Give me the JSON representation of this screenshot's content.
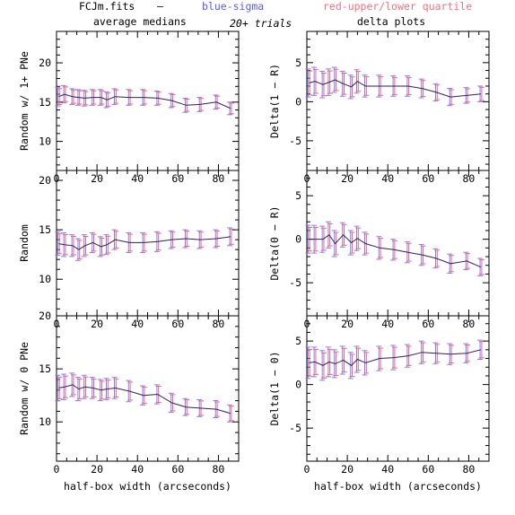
{
  "header": {
    "file": "FCJm.fits",
    "dash": "—",
    "blue_label": "blue-sigma",
    "red_label": "red-upper/lower quartile",
    "trials": "20+ trials"
  },
  "colors": {
    "line": "#3a1a5a",
    "blue": "#8080ee",
    "red": "#ee6080",
    "axis": "#000000"
  },
  "columns": {
    "left_title": "average medians",
    "right_title": "delta plots"
  },
  "x_axis": {
    "label": "half-box width (arcseconds)",
    "range": [
      0,
      90
    ],
    "ticks": [
      0,
      20,
      40,
      60,
      80
    ]
  },
  "chart_data": [
    {
      "type": "line",
      "position": "left-top",
      "ylabel": "Random w/ 1+ PNe",
      "ylim": [
        6.3,
        24
      ],
      "yticks": [
        10,
        15,
        20
      ],
      "x": [
        1,
        4,
        8,
        11,
        14,
        18,
        22,
        25,
        29,
        36,
        43,
        50,
        57,
        64,
        71,
        79,
        86
      ],
      "y": [
        15.7,
        16.0,
        15.7,
        15.6,
        15.5,
        15.6,
        15.6,
        15.3,
        15.7,
        15.6,
        15.6,
        15.5,
        15.2,
        14.6,
        14.7,
        15.0,
        14.2
      ],
      "err": [
        1.2,
        1.1,
        1.0,
        1.0,
        1.0,
        1.0,
        1.0,
        1.0,
        1.0,
        1.0,
        1.0,
        0.9,
        0.9,
        0.9,
        0.9,
        0.9,
        0.8
      ]
    },
    {
      "type": "line",
      "position": "right-top",
      "ylabel": "Delta(1 − R)",
      "ylim": [
        -8.8,
        9
      ],
      "yticks": [
        -5,
        0,
        5
      ],
      "x": [
        1,
        4,
        8,
        11,
        14,
        18,
        22,
        25,
        29,
        36,
        43,
        50,
        57,
        64,
        71,
        79,
        86
      ],
      "y": [
        2.4,
        2.6,
        2.2,
        2.5,
        2.8,
        2.3,
        1.9,
        2.6,
        2.0,
        2.0,
        2.0,
        2.0,
        1.7,
        1.2,
        0.6,
        0.8,
        1.0
      ],
      "err": [
        1.8,
        1.8,
        1.7,
        1.7,
        1.6,
        1.6,
        1.5,
        1.5,
        1.4,
        1.4,
        1.3,
        1.3,
        1.2,
        1.1,
        1.1,
        1.0,
        1.0
      ]
    },
    {
      "type": "line",
      "position": "left-middle",
      "ylabel": "Random",
      "ylim": [
        6.3,
        21
      ],
      "yticks": [
        10,
        15,
        20
      ],
      "x": [
        1,
        4,
        8,
        11,
        14,
        18,
        22,
        25,
        29,
        36,
        43,
        50,
        57,
        64,
        71,
        79,
        86
      ],
      "y": [
        13.6,
        13.5,
        13.4,
        13.0,
        13.4,
        13.7,
        13.3,
        13.5,
        14.0,
        13.7,
        13.7,
        13.8,
        14.0,
        14.1,
        14.0,
        14.1,
        14.3
      ],
      "err": [
        1.2,
        1.2,
        1.1,
        1.1,
        1.1,
        1.0,
        1.0,
        1.0,
        1.0,
        1.0,
        1.0,
        1.0,
        0.9,
        0.9,
        0.9,
        0.9,
        0.9
      ]
    },
    {
      "type": "line",
      "position": "right-middle",
      "ylabel": "Delta(0 − R)",
      "ylim": [
        -8.8,
        7.9
      ],
      "yticks": [
        -5,
        0,
        5
      ],
      "x": [
        1,
        4,
        8,
        11,
        14,
        18,
        22,
        25,
        29,
        36,
        43,
        50,
        57,
        64,
        71,
        79,
        86
      ],
      "y": [
        0.0,
        0.0,
        0.0,
        0.5,
        -0.5,
        0.5,
        -0.4,
        0.1,
        -0.5,
        -1.0,
        -1.2,
        -1.5,
        -1.8,
        -2.2,
        -2.8,
        -2.5,
        -3.2
      ],
      "err": [
        1.6,
        1.6,
        1.5,
        1.5,
        1.5,
        1.4,
        1.4,
        1.4,
        1.3,
        1.3,
        1.2,
        1.2,
        1.2,
        1.1,
        1.1,
        1.0,
        1.0
      ]
    },
    {
      "type": "line",
      "position": "left-bottom",
      "ylabel": "Random w/ 0 PNe",
      "ylim": [
        6.3,
        20
      ],
      "yticks": [
        10,
        15,
        20
      ],
      "xlabel": "half-box width (arcseconds)",
      "x": [
        1,
        4,
        8,
        11,
        14,
        18,
        22,
        25,
        29,
        36,
        43,
        50,
        57,
        64,
        71,
        79,
        86
      ],
      "y": [
        13.2,
        13.3,
        13.5,
        13.1,
        13.3,
        13.2,
        13.0,
        13.1,
        13.2,
        12.9,
        12.5,
        12.6,
        11.8,
        11.4,
        11.3,
        11.2,
        10.8
      ],
      "err": [
        1.2,
        1.2,
        1.1,
        1.1,
        1.1,
        1.0,
        1.0,
        1.0,
        1.0,
        1.0,
        0.9,
        0.9,
        0.9,
        0.8,
        0.8,
        0.8,
        0.8
      ]
    },
    {
      "type": "line",
      "position": "right-bottom",
      "ylabel": "Delta(1 − 0)",
      "ylim": [
        -8.8,
        7.9
      ],
      "yticks": [
        -5,
        0,
        5
      ],
      "xlabel": "half-box width (arcseconds)",
      "x": [
        1,
        4,
        8,
        11,
        14,
        18,
        22,
        25,
        29,
        36,
        43,
        50,
        57,
        64,
        71,
        79,
        86
      ],
      "y": [
        2.5,
        2.6,
        2.2,
        2.6,
        2.4,
        2.8,
        2.2,
        2.9,
        2.5,
        3.0,
        3.1,
        3.3,
        3.7,
        3.6,
        3.5,
        3.6,
        4.0
      ],
      "err": [
        1.8,
        1.7,
        1.7,
        1.7,
        1.6,
        1.6,
        1.5,
        1.5,
        1.4,
        1.4,
        1.4,
        1.3,
        1.3,
        1.2,
        1.2,
        1.1,
        1.1
      ]
    }
  ]
}
